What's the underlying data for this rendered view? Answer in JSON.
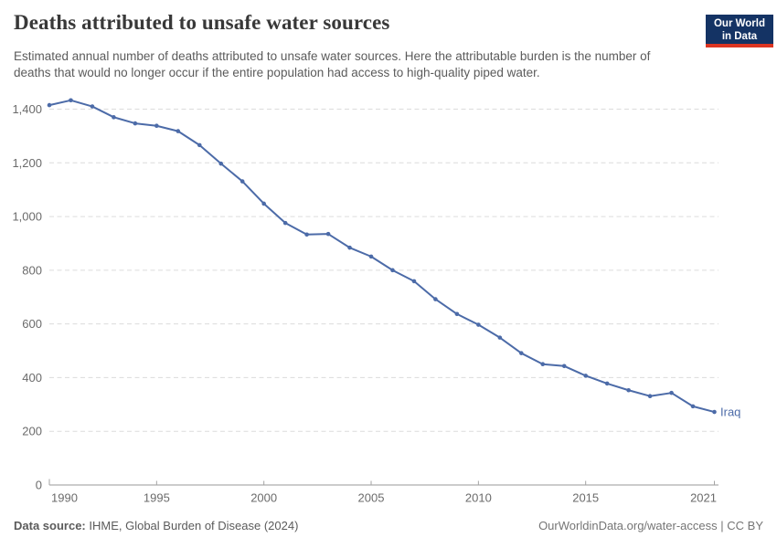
{
  "header": {
    "title": "Deaths attributed to unsafe water sources",
    "subtitle": "Estimated annual number of deaths attributed to unsafe water sources. Here the attributable burden is the number of deaths that would no longer occur if the entire population had access to high-quality piped water.",
    "logo_line1": "Our World",
    "logo_line2": "in Data",
    "logo_bg_color": "#143364",
    "logo_bar_color": "#dc3522"
  },
  "footer": {
    "source_label": "Data source:",
    "source_text": "IHME, Global Burden of Disease (2024)",
    "url": "OurWorldinData.org/water-access",
    "separator": "|",
    "license": "CC BY"
  },
  "chart_data": {
    "type": "line",
    "title": "Deaths attributed to unsafe water sources",
    "xlabel": "",
    "ylabel": "",
    "grid": "horizontal-dashed",
    "legend_position": "end-of-line-label",
    "xlim": [
      1990,
      2021
    ],
    "ylim": [
      0,
      1400
    ],
    "x": [
      1990,
      1991,
      1992,
      1993,
      1994,
      1995,
      1996,
      1997,
      1998,
      1999,
      2000,
      2001,
      2002,
      2003,
      2004,
      2005,
      2006,
      2007,
      2008,
      2009,
      2010,
      2011,
      2012,
      2013,
      2014,
      2015,
      2016,
      2017,
      2018,
      2019,
      2020,
      2021
    ],
    "series": [
      {
        "name": "Iraq",
        "color": "#4c6ba8",
        "values": [
          1415,
          1433,
          1410,
          1370,
          1347,
          1338,
          1318,
          1266,
          1197,
          1131,
          1048,
          976,
          933,
          935,
          884,
          851,
          800,
          759,
          692,
          637,
          597,
          549,
          491,
          450,
          443,
          407,
          378,
          353,
          331,
          343,
          293,
          272
        ]
      }
    ],
    "xticks": [
      {
        "v": 1990,
        "label": "1990"
      },
      {
        "v": 1995,
        "label": "1995"
      },
      {
        "v": 2000,
        "label": "2000"
      },
      {
        "v": 2005,
        "label": "2005"
      },
      {
        "v": 2010,
        "label": "2010"
      },
      {
        "v": 2015,
        "label": "2015"
      },
      {
        "v": 2021,
        "label": "2021"
      }
    ],
    "yticks": [
      {
        "v": 0,
        "label": "0"
      },
      {
        "v": 200,
        "label": "200"
      },
      {
        "v": 400,
        "label": "400"
      },
      {
        "v": 600,
        "label": "600"
      },
      {
        "v": 800,
        "label": "800"
      },
      {
        "v": 1000,
        "label": "1,000"
      },
      {
        "v": 1200,
        "label": "1,200"
      },
      {
        "v": 1400,
        "label": "1,400"
      }
    ]
  }
}
